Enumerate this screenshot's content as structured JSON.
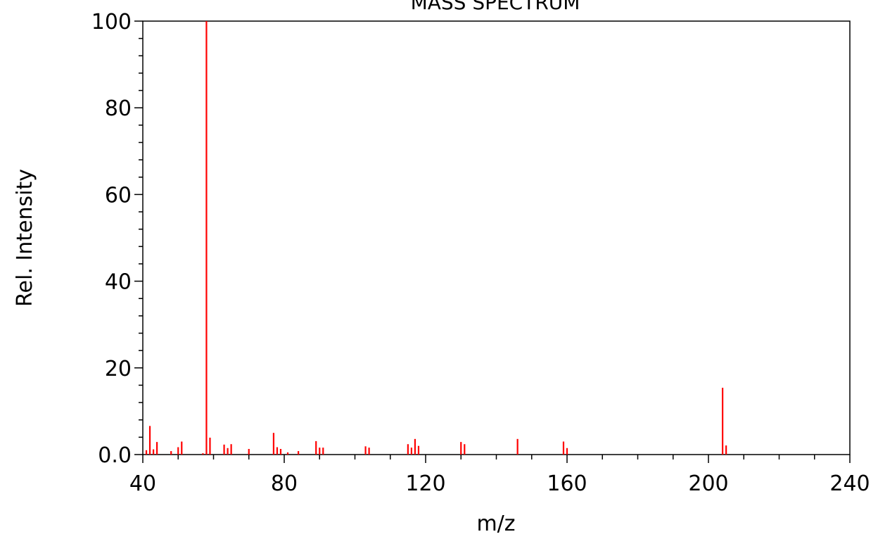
{
  "chart_data": {
    "type": "bar",
    "title": "MASS SPECTRUM",
    "xlabel": "m/z",
    "ylabel": "Rel. Intensity",
    "xlim": [
      40,
      240
    ],
    "ylim": [
      0,
      100
    ],
    "x_ticks": [
      "40",
      "80",
      "120",
      "160",
      "200",
      "240"
    ],
    "y_ticks": [
      "0.0",
      "20",
      "40",
      "60",
      "80",
      "100"
    ],
    "grid": false,
    "legend": "none",
    "color": "#ff0000",
    "series": [
      {
        "x": [
          41,
          42,
          43,
          44,
          48,
          50,
          51,
          57,
          58,
          59,
          63,
          64,
          65,
          70,
          77,
          78,
          79,
          81,
          84,
          89,
          90,
          91,
          103,
          104,
          115,
          116,
          117,
          118,
          130,
          131,
          146,
          159,
          160,
          204,
          205
        ],
        "values": [
          1.0,
          6.6,
          1.2,
          2.9,
          0.8,
          1.7,
          3.0,
          0.3,
          100,
          3.9,
          2.3,
          1.5,
          2.4,
          1.3,
          5.0,
          1.7,
          1.3,
          0.5,
          0.8,
          3.1,
          1.6,
          1.6,
          1.9,
          1.6,
          2.4,
          1.6,
          3.6,
          2.0,
          2.9,
          2.4,
          3.6,
          3.0,
          1.5,
          15.4,
          2.1
        ]
      }
    ]
  }
}
